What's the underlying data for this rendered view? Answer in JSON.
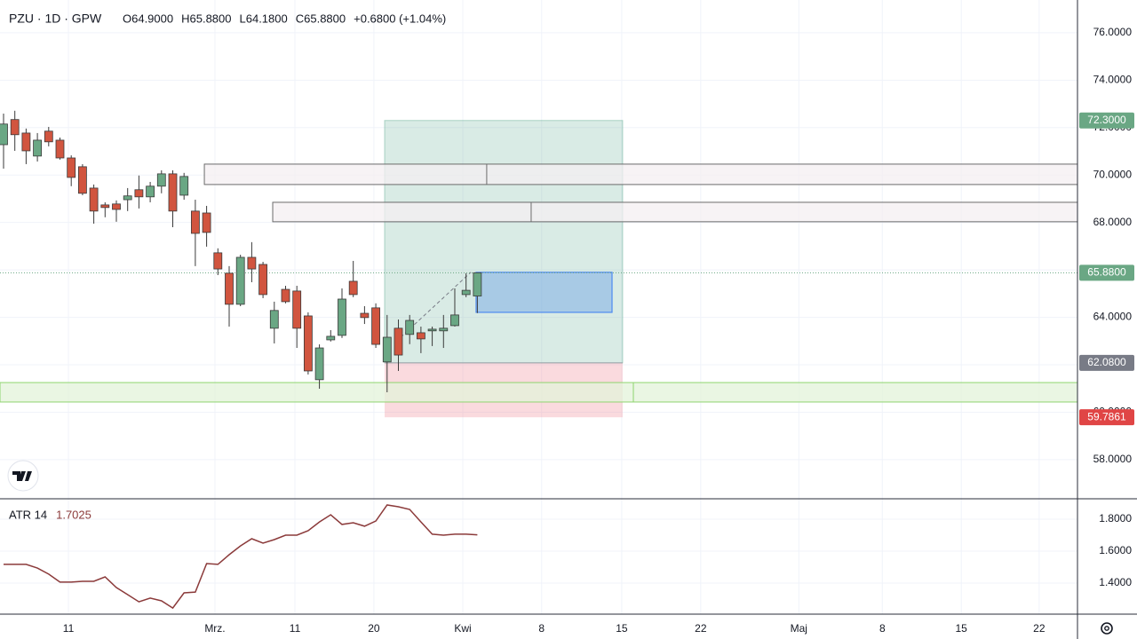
{
  "header": {
    "title": "PZU · 1D · GPW",
    "items": [
      "O64.9000",
      "H65.8800",
      "L64.1800",
      "C65.8800",
      "+0.6800 (+1.04%)"
    ]
  },
  "chart_data": [
    {
      "type": "candlestick",
      "x": [
        0,
        1,
        2,
        3,
        4,
        5,
        6,
        7,
        8,
        9,
        10,
        11,
        12,
        13,
        14,
        15,
        16,
        17,
        18,
        19,
        20,
        21,
        22,
        23,
        24,
        25,
        26,
        27,
        28,
        29,
        30,
        31,
        32,
        33,
        34,
        35,
        36,
        37,
        38,
        39,
        40,
        41,
        42
      ],
      "open": [
        71.28,
        72.34,
        71.77,
        70.8,
        71.85,
        71.47,
        70.72,
        70.35,
        69.45,
        68.74,
        68.78,
        68.96,
        69.38,
        69.08,
        69.53,
        70.05,
        69.15,
        68.48,
        68.4,
        66.72,
        65.86,
        64.55,
        66.53,
        66.23,
        63.54,
        65.18,
        65.11,
        64.06,
        61.37,
        63.05,
        63.24,
        65.52,
        64.17,
        64.4,
        62.12,
        63.54,
        63.28,
        63.35,
        63.43,
        63.43,
        63.65,
        64.96,
        64.9
      ],
      "high": [
        72.59,
        72.71,
        71.96,
        71.77,
        72.03,
        71.58,
        70.83,
        70.46,
        69.6,
        68.85,
        68.93,
        69.45,
        69.98,
        69.71,
        70.2,
        70.2,
        70.09,
        68.96,
        68.7,
        66.91,
        66.16,
        66.64,
        67.17,
        66.34,
        64.66,
        65.33,
        65.33,
        64.21,
        62.86,
        63.46,
        65.22,
        66.38,
        64.47,
        64.59,
        64.1,
        63.91,
        64.1,
        63.61,
        63.61,
        64.1,
        65.22,
        65.86,
        65.88
      ],
      "low": [
        70.27,
        71.02,
        70.46,
        70.57,
        71.21,
        70.65,
        69.53,
        69.15,
        67.95,
        68.22,
        68.03,
        68.48,
        68.59,
        68.85,
        69.23,
        67.8,
        68.96,
        66.16,
        66.98,
        65.78,
        63.61,
        64.47,
        65.48,
        64.81,
        62.9,
        64.59,
        62.71,
        61.59,
        60.99,
        62.98,
        63.13,
        64.85,
        63.72,
        62.71,
        60.84,
        61.74,
        62.87,
        62.49,
        62.79,
        62.71,
        63.61,
        64.85,
        64.18
      ],
      "close": [
        72.15,
        71.7,
        71.02,
        71.47,
        71.4,
        70.72,
        69.9,
        69.23,
        68.48,
        68.63,
        68.55,
        69.12,
        69.08,
        69.53,
        70.05,
        68.48,
        69.94,
        67.54,
        67.58,
        66.04,
        64.55,
        66.53,
        66.04,
        64.96,
        64.29,
        64.66,
        63.54,
        61.74,
        62.71,
        63.2,
        64.77,
        64.96,
        63.99,
        62.86,
        63.16,
        62.41,
        63.87,
        63.09,
        63.5,
        63.54,
        64.1,
        65.14,
        65.88
      ],
      "colors": {
        "up": "#6aa784",
        "down": "#d1553f"
      },
      "last_price_label": "65.8800",
      "ylim": [
        56.35,
        77.38
      ],
      "yticks": [
        {
          "value": 58,
          "label": "58.0000"
        },
        {
          "value": 60,
          "label": "60.0000"
        },
        {
          "value": 62,
          "label": "62.0000"
        },
        {
          "value": 64,
          "label": "64.0000"
        },
        {
          "value": 66,
          "label": "66.0000"
        },
        {
          "value": 68,
          "label": "68.0000"
        },
        {
          "value": 70,
          "label": "70.0000"
        },
        {
          "value": 72,
          "label": "72.0000"
        },
        {
          "value": 74,
          "label": "74.0000"
        },
        {
          "value": 76,
          "label": "76.0000"
        }
      ],
      "xlim": [
        -0.315,
        95.2
      ],
      "xticks": [
        {
          "value": 5.75,
          "label": "11"
        },
        {
          "value": 18.74,
          "label": "Mrz."
        },
        {
          "value": 25.83,
          "label": "11"
        },
        {
          "value": 32.83,
          "label": "20"
        },
        {
          "value": 40.71,
          "label": "Kwi"
        },
        {
          "value": 47.7,
          "label": "8"
        },
        {
          "value": 54.8,
          "label": "15"
        },
        {
          "value": 61.8,
          "label": "22"
        },
        {
          "value": 70.5,
          "label": "Maj"
        },
        {
          "value": 77.9,
          "label": "8"
        },
        {
          "value": 84.9,
          "label": "15"
        },
        {
          "value": 91.8,
          "label": "22"
        }
      ],
      "grid": true,
      "position": {
        "x": [
          33.78,
          54.88
        ],
        "target": {
          "value": 72.3,
          "label": "72.3000"
        },
        "entry": {
          "value": 62.08,
          "label": "62.0800"
        },
        "stop": {
          "value": 59.7861,
          "label": "59.7861"
        }
      },
      "zones": [
        {
          "x": [
            17.8,
            42.83
          ],
          "y": [
            69.6,
            70.46
          ],
          "color": "#f4eff1"
        },
        {
          "x": [
            23.86,
            46.77
          ],
          "y": [
            68.03,
            68.85
          ],
          "color": "#f4eff1"
        },
        {
          "x": [
            -0.315,
            55.83
          ],
          "y": [
            60.43,
            61.25
          ],
          "color": "#e3f3d9"
        }
      ],
      "box": {
        "x": [
          41.89,
          53.94
        ],
        "y": [
          64.21,
          65.9
        ]
      },
      "trend": {
        "x": [
          34.8,
          41.42
        ],
        "y": [
          62.98,
          65.9
        ]
      }
    },
    {
      "type": "line",
      "title": "ATR 14",
      "x": [
        0,
        1,
        2,
        3,
        4,
        5,
        6,
        7,
        8,
        9,
        10,
        11,
        12,
        13,
        14,
        15,
        16,
        17,
        18,
        19,
        20,
        21,
        22,
        23,
        24,
        25,
        26,
        27,
        28,
        29,
        30,
        31,
        32,
        33,
        34,
        35,
        36,
        37,
        38,
        39,
        40,
        41,
        42
      ],
      "values": [
        1.517,
        1.517,
        1.517,
        1.494,
        1.456,
        1.406,
        1.406,
        1.411,
        1.411,
        1.439,
        1.372,
        1.328,
        1.283,
        1.306,
        1.289,
        1.244,
        1.339,
        1.344,
        1.522,
        1.517,
        1.578,
        1.633,
        1.678,
        1.65,
        1.672,
        1.7,
        1.7,
        1.728,
        1.783,
        1.828,
        1.767,
        1.778,
        1.756,
        1.789,
        1.889,
        1.878,
        1.861,
        1.783,
        1.706,
        1.7,
        1.706,
        1.706,
        1.7025
      ],
      "color": "#8b3a3a",
      "ylim": [
        1.2056,
        1.9278
      ],
      "yticks": [
        {
          "value": 1.4,
          "label": "1.4000"
        },
        {
          "value": 1.6,
          "label": "1.6000"
        },
        {
          "value": 1.8,
          "label": "1.8000"
        }
      ],
      "grid": true
    }
  ]
}
